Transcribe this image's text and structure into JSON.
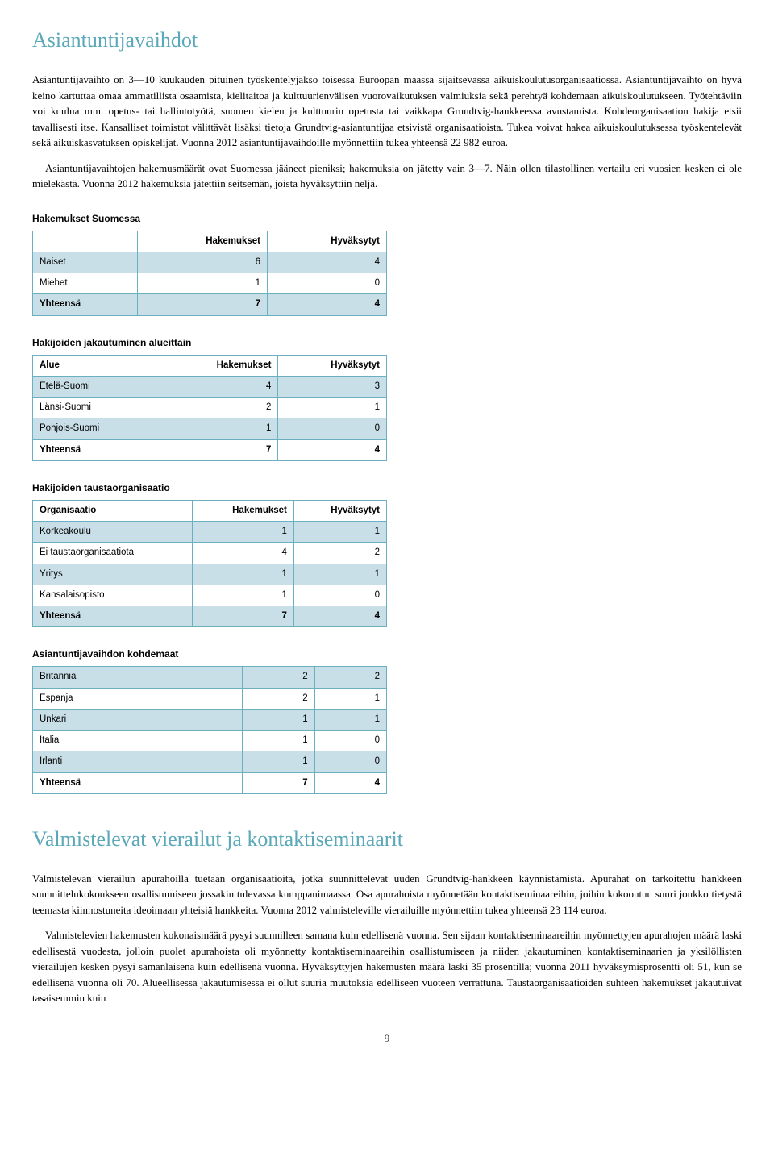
{
  "section1": {
    "title": "Asiantuntijavaihdot",
    "paragraphs": [
      "Asiantuntijavaihto on 3—10 kuukauden pituinen työskentelyjakso toisessa Euroopan maassa sijaitsevassa aikuiskoulutusorganisaatiossa. Asiantuntijavaihto on hyvä keino kartuttaa omaa ammatillista osaamista, kielitaitoa ja kulttuurienvälisen vuorovaikutuksen valmiuksia sekä perehtyä kohdemaan aikuiskoulutukseen. Työtehtäviin voi kuulua mm. opetus- tai hallintotyötä, suomen kielen ja kulttuurin opetusta tai vaikkapa Grundtvig-hankkeessa avustamista. Kohdeorganisaation hakija etsii tavallisesti itse. Kansalliset toimistot välittävät lisäksi tietoja Grundtvig-asiantuntijaa etsivistä organisaatioista. Tukea voivat hakea aikuiskoulutuksessa työskentelevät sekä aikuiskasvatuksen opiskelijat. Vuonna 2012 asiantuntijavaihdoille myönnettiin tukea yhteensä 22 982 euroa.",
      "Asiantuntijavaihtojen hakemusmäärät ovat Suomessa jääneet pieniksi; hakemuksia on jätetty vain 3—7. Näin ollen tilastollinen vertailu eri vuosien kesken ei ole mielekästä. Vuonna 2012 hakemuksia jätettiin seitsemän, joista hyväksyttiin neljä."
    ]
  },
  "table1": {
    "title": "Hakemukset Suomessa",
    "headers": [
      "",
      "Hakemukset",
      "Hyväksytyt"
    ],
    "rows": [
      {
        "label": "Naiset",
        "c1": "6",
        "c2": "4",
        "alt": true
      },
      {
        "label": "Miehet",
        "c1": "1",
        "c2": "0",
        "alt": false
      },
      {
        "label": "Yhteensä",
        "c1": "7",
        "c2": "4",
        "alt": true,
        "total": true
      }
    ]
  },
  "table2": {
    "title": "Hakijoiden jakautuminen alueittain",
    "headers": [
      "Alue",
      "Hakemukset",
      "Hyväksytyt"
    ],
    "rows": [
      {
        "label": "Etelä-Suomi",
        "c1": "4",
        "c2": "3",
        "alt": true
      },
      {
        "label": "Länsi-Suomi",
        "c1": "2",
        "c2": "1",
        "alt": false
      },
      {
        "label": "Pohjois-Suomi",
        "c1": "1",
        "c2": "0",
        "alt": true
      },
      {
        "label": "Yhteensä",
        "c1": "7",
        "c2": "4",
        "alt": false,
        "total": true
      }
    ]
  },
  "table3": {
    "title": "Hakijoiden taustaorganisaatio",
    "headers": [
      "Organisaatio",
      "Hakemukset",
      "Hyväksytyt"
    ],
    "rows": [
      {
        "label": "Korkeakoulu",
        "c1": "1",
        "c2": "1",
        "alt": true
      },
      {
        "label": "Ei taustaorganisaatiota",
        "c1": "4",
        "c2": "2",
        "alt": false
      },
      {
        "label": "Yritys",
        "c1": "1",
        "c2": "1",
        "alt": true
      },
      {
        "label": "Kansalaisopisto",
        "c1": "1",
        "c2": "0",
        "alt": false
      },
      {
        "label": "Yhteensä",
        "c1": "7",
        "c2": "4",
        "alt": true,
        "total": true
      }
    ]
  },
  "table4": {
    "title": "Asiantuntijavaihdon kohdemaat",
    "rows": [
      {
        "label": "Britannia",
        "c1": "2",
        "c2": "2",
        "alt": true
      },
      {
        "label": "Espanja",
        "c1": "2",
        "c2": "1",
        "alt": false
      },
      {
        "label": "Unkari",
        "c1": "1",
        "c2": "1",
        "alt": true
      },
      {
        "label": "Italia",
        "c1": "1",
        "c2": "0",
        "alt": false
      },
      {
        "label": "Irlanti",
        "c1": "1",
        "c2": "0",
        "alt": true
      },
      {
        "label": "Yhteensä",
        "c1": "7",
        "c2": "4",
        "alt": false,
        "total": true
      }
    ]
  },
  "section2": {
    "title": "Valmistelevat vierailut ja kontaktiseminaarit",
    "paragraphs": [
      "Valmistelevan vierailun apurahoilla tuetaan organisaatioita, jotka suunnittelevat uuden Grundtvig-hankkeen käynnistämistä. Apurahat on tarkoitettu hankkeen suunnittelukokoukseen osallistumiseen jossakin tulevassa kumppanimaassa. Osa apurahoista myönnetään kontaktiseminaareihin, joihin kokoontuu suuri joukko tietystä teemasta kiinnostuneita ideoimaan yhteisiä hankkeita. Vuonna 2012 valmisteleville vierailuille myönnettiin tukea yhteensä 23 114 euroa.",
      "Valmistelevien hakemusten kokonaismäärä pysyi suunnilleen samana kuin edellisenä vuonna. Sen sijaan kontaktiseminaareihin myönnettyjen apurahojen määrä laski edellisestä vuodesta, jolloin puolet apurahoista oli myönnetty kontaktiseminaareihin osallistumiseen ja niiden jakautuminen kontaktiseminaarien ja yksilöllisten vierailujen kesken pysyi samanlaisena kuin edellisenä vuonna. Hyväksyttyjen hakemusten määrä laski 35 prosentilla; vuonna 2011 hyväksymisprosentti oli 51, kun se edellisenä vuonna oli 70. Alueellisessa jakautumisessa ei ollut suuria muutoksia edelliseen vuoteen verrattuna. Taustaorganisaatioiden suhteen hakemukset jakautuivat tasaisemmin kuin"
    ]
  },
  "page_number": "9"
}
